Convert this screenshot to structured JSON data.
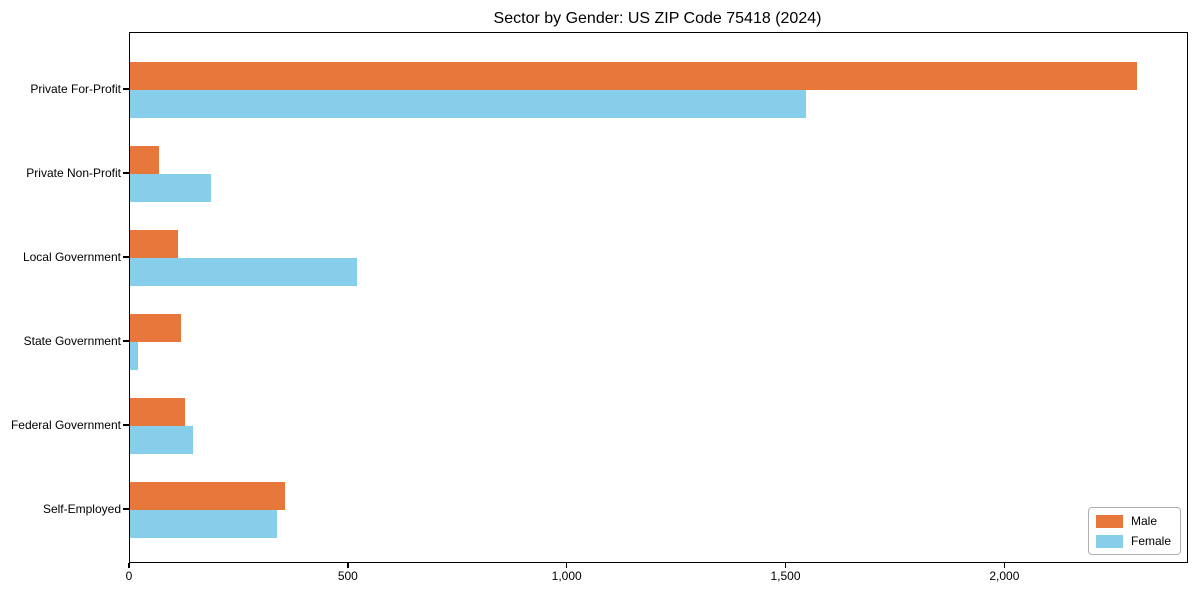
{
  "chart_data": {
    "type": "bar",
    "orientation": "horizontal",
    "title": "Sector by Gender: US ZIP Code 75418 (2024)",
    "categories": [
      "Private For-Profit",
      "Private Non-Profit",
      "Local Government",
      "State Government",
      "Federal Government",
      "Self-Employed"
    ],
    "series": [
      {
        "name": "Male",
        "color": "#e8773b",
        "values": [
          2300,
          66,
          110,
          116,
          125,
          355
        ]
      },
      {
        "name": "Female",
        "color": "#87ceeb",
        "values": [
          1545,
          186,
          518,
          19,
          144,
          335
        ]
      }
    ],
    "xlabel": "",
    "ylabel": "",
    "xlim": [
      0,
      2415
    ],
    "xticks": {
      "values": [
        0,
        500,
        1000,
        1500,
        2000
      ],
      "labels": [
        "0",
        "500",
        "1,000",
        "1,500",
        "2,000"
      ]
    },
    "grid": false,
    "legend": {
      "position": "lower right",
      "entries": [
        "Male",
        "Female"
      ]
    }
  }
}
